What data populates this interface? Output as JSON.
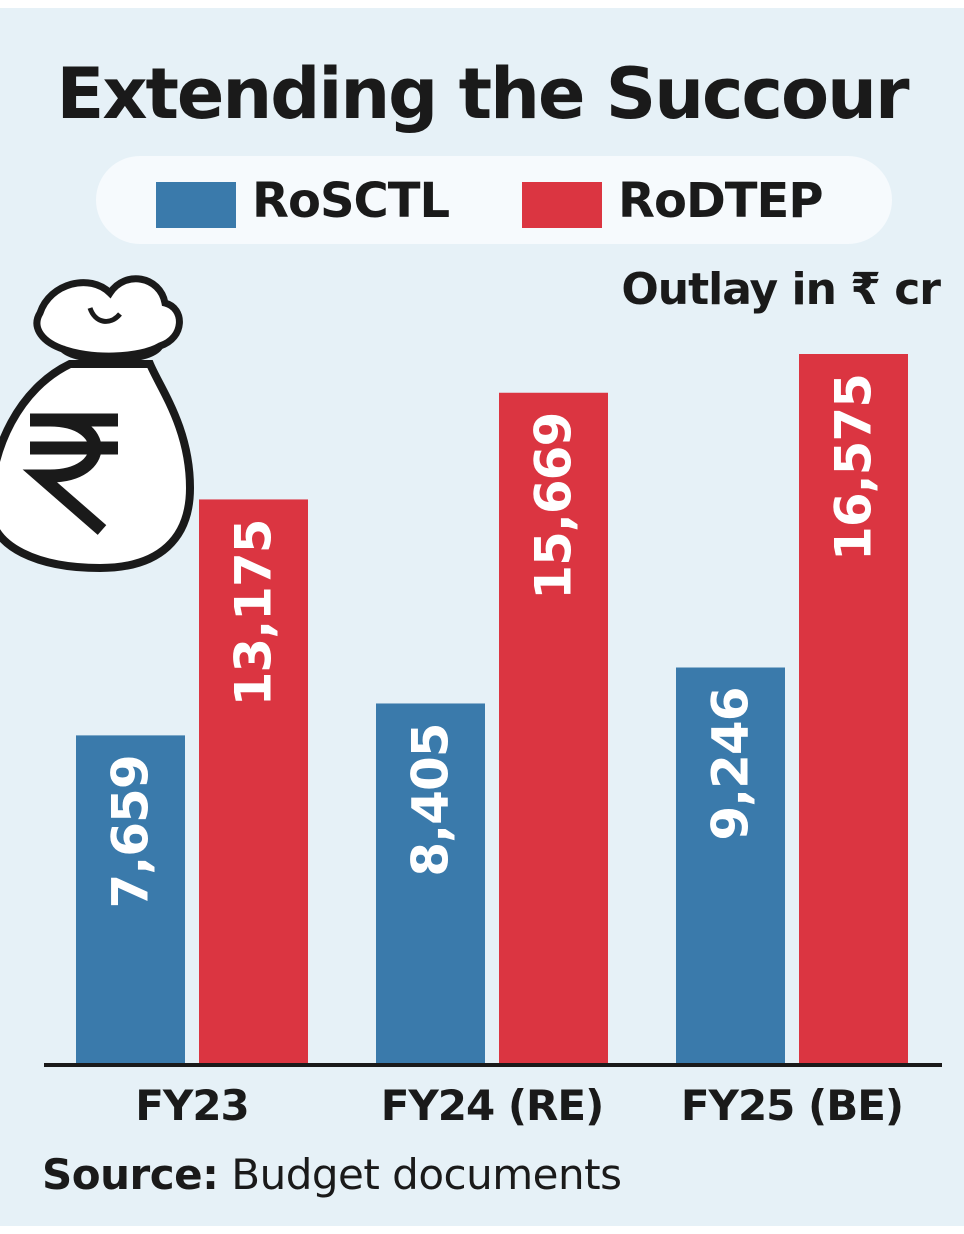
{
  "title": "Extending the Succour",
  "unit_label": "Outlay in ₹ cr",
  "source_prefix": "Source:",
  "source_text": "Budget documents",
  "colors": {
    "RoSCTL": "#3a7aab",
    "RoDTEP": "#db3541",
    "background": "#e6f1f7"
  },
  "icon": "money-bag-rupee-icon",
  "chart_data": {
    "type": "bar",
    "categories": [
      "FY23",
      "FY24 (RE)",
      "FY25 (BE)"
    ],
    "series": [
      {
        "name": "RoSCTL",
        "values": [
          7659,
          8405,
          9246
        ],
        "labels": [
          "7,659",
          "8,405",
          "9,246"
        ]
      },
      {
        "name": "RoDTEP",
        "values": [
          13175,
          15669,
          16575
        ],
        "labels": [
          "13,175",
          "15,669",
          "16,575"
        ]
      }
    ],
    "ylim": [
      0,
      18100
    ],
    "legend": "top",
    "grid": false
  }
}
